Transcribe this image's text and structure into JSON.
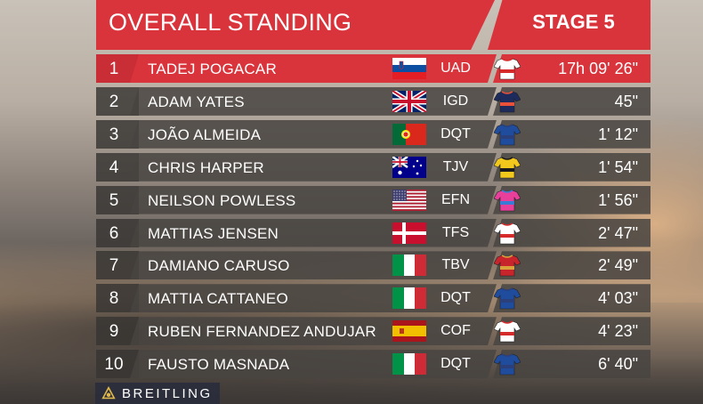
{
  "header": {
    "title": "OVERALL STANDING",
    "stage": "STAGE 5"
  },
  "rows": [
    {
      "rank": "1",
      "name": "TADEJ POGACAR",
      "flag": "slovenia",
      "team": "UAD",
      "time": "17h 09' 26\""
    },
    {
      "rank": "2",
      "name": "ADAM YATES",
      "flag": "uk",
      "team": "IGD",
      "time": "45\""
    },
    {
      "rank": "3",
      "name": "JOÃO ALMEIDA",
      "flag": "portugal",
      "team": "DQT",
      "time": "1' 12\""
    },
    {
      "rank": "4",
      "name": "CHRIS HARPER",
      "flag": "australia",
      "team": "TJV",
      "time": "1' 54\""
    },
    {
      "rank": "5",
      "name": "NEILSON POWLESS",
      "flag": "usa",
      "team": "EFN",
      "time": "1' 56\""
    },
    {
      "rank": "6",
      "name": "MATTIAS JENSEN",
      "flag": "denmark",
      "team": "TFS",
      "time": "2' 47\""
    },
    {
      "rank": "7",
      "name": "DAMIANO CARUSO",
      "flag": "italy",
      "team": "TBV",
      "time": "2' 49\""
    },
    {
      "rank": "8",
      "name": "MATTIA CATTANEO",
      "flag": "italy",
      "team": "DQT",
      "time": "4' 03\""
    },
    {
      "rank": "9",
      "name": "RUBEN FERNANDEZ ANDUJAR",
      "flag": "spain",
      "team": "COF",
      "time": "4' 23\""
    },
    {
      "rank": "10",
      "name": "FAUSTO MASNADA",
      "flag": "italy",
      "team": "DQT",
      "time": "6' 40\""
    }
  ],
  "sponsor": {
    "name": "BREITLING"
  },
  "colors": {
    "accent": "#d9343c",
    "row_bg": "#48443f"
  },
  "jerseys": {
    "UAD": [
      "#ffffff",
      "#d62b2b"
    ],
    "IGD": [
      "#1c2a5c",
      "#e8503a"
    ],
    "DQT": [
      "#1f4c9c",
      "#2b3f7a"
    ],
    "TJV": [
      "#f3c81c",
      "#1a1a1a"
    ],
    "EFN": [
      "#e8409a",
      "#3a7bd5"
    ],
    "TFS": [
      "#ffffff",
      "#d62b2b"
    ],
    "TBV": [
      "#c8242c",
      "#d9a23a"
    ],
    "COF": [
      "#ffffff",
      "#d62b2b"
    ]
  }
}
